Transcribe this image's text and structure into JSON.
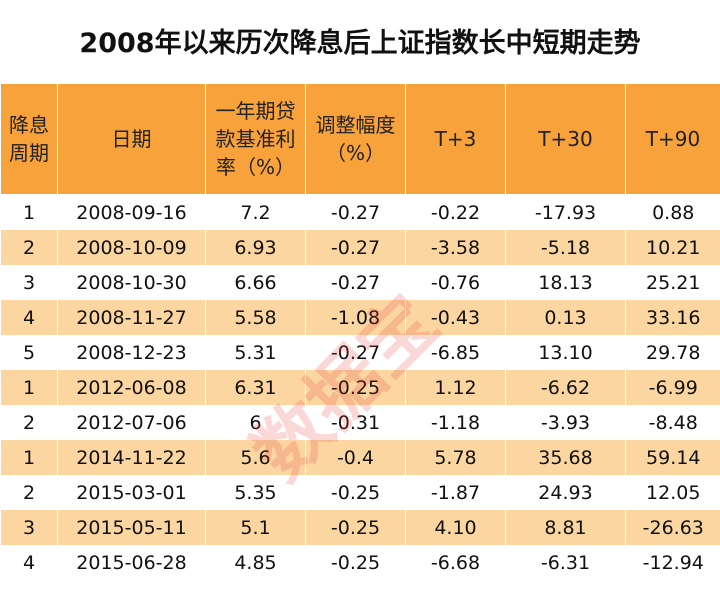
{
  "title": "2008年以来历次降息后上证指数长中短期走势",
  "watermark": "数据宝",
  "table": {
    "header": [
      "降息周期",
      "日期",
      "一年期贷款基准利率（%）",
      "调整幅度（%）",
      "T+3",
      "T+30",
      "T+90"
    ],
    "rows": [
      [
        "1",
        "2008-09-16",
        "7.2",
        "-0.27",
        "-0.22",
        "-17.93",
        "0.88"
      ],
      [
        "2",
        "2008-10-09",
        "6.93",
        "-0.27",
        "-3.58",
        "-5.18",
        "10.21"
      ],
      [
        "3",
        "2008-10-30",
        "6.66",
        "-0.27",
        "-0.76",
        "18.13",
        "25.21"
      ],
      [
        "4",
        "2008-11-27",
        "5.58",
        "-1.08",
        "-0.43",
        "0.13",
        "33.16"
      ],
      [
        "5",
        "2008-12-23",
        "5.31",
        "-0.27",
        "-6.85",
        "13.10",
        "29.78"
      ],
      [
        "1",
        "2012-06-08",
        "6.31",
        "-0.25",
        "1.12",
        "-6.62",
        "-6.99"
      ],
      [
        "2",
        "2012-07-06",
        "6",
        "-0.31",
        "-1.18",
        "-3.93",
        "-8.48"
      ],
      [
        "1",
        "2014-11-22",
        "5.6",
        "-0.4",
        "5.78",
        "35.68",
        "59.14"
      ],
      [
        "2",
        "2015-03-01",
        "5.35",
        "-0.25",
        "-1.87",
        "24.93",
        "12.05"
      ],
      [
        "3",
        "2015-05-11",
        "5.1",
        "-0.25",
        "4.10",
        "8.81",
        "-26.63"
      ],
      [
        "4",
        "2015-06-28",
        "4.85",
        "-0.25",
        "-6.68",
        "-6.31",
        "-12.94"
      ]
    ]
  }
}
